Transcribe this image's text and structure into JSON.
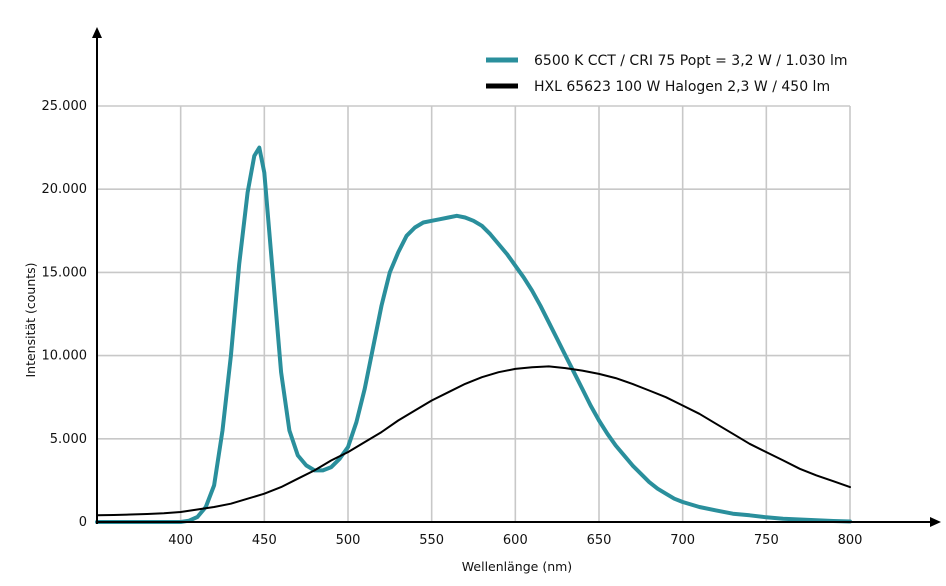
{
  "chart_data": {
    "type": "line",
    "title": "",
    "xlabel": "Wellenlänge (nm)",
    "ylabel": "Intensität (counts)",
    "xlim": [
      350,
      800
    ],
    "ylim": [
      0,
      25000
    ],
    "x_ticks": [
      400,
      450,
      500,
      550,
      600,
      650,
      700,
      750,
      800
    ],
    "x_tick_labels": [
      "400",
      "450",
      "500",
      "550",
      "600",
      "650",
      "700",
      "750",
      "800"
    ],
    "y_ticks": [
      0,
      5000,
      10000,
      15000,
      20000,
      25000
    ],
    "y_tick_labels": [
      "0",
      "5.000",
      "10.000",
      "15.000",
      "20.000",
      "25.000"
    ],
    "grid": true,
    "legend_position": "top-right",
    "series": [
      {
        "name": "6500 K CCT / CRI 75 Popt = 3,2 W / 1.030 lm",
        "color": "#2a8f9c",
        "x": [
          350,
          400,
          405,
          410,
          415,
          420,
          425,
          430,
          435,
          440,
          444,
          447,
          450,
          455,
          460,
          465,
          470,
          475,
          480,
          485,
          490,
          495,
          500,
          505,
          510,
          515,
          520,
          525,
          530,
          535,
          540,
          545,
          550,
          555,
          560,
          565,
          570,
          575,
          580,
          585,
          590,
          595,
          600,
          605,
          610,
          615,
          620,
          625,
          630,
          635,
          640,
          645,
          650,
          655,
          660,
          665,
          670,
          675,
          680,
          685,
          690,
          695,
          700,
          710,
          720,
          730,
          740,
          750,
          760,
          770,
          780,
          790,
          800
        ],
        "values": [
          0,
          0,
          80,
          300,
          900,
          2200,
          5500,
          10000,
          15500,
          19800,
          22000,
          22500,
          21000,
          15000,
          9000,
          5500,
          4000,
          3400,
          3100,
          3100,
          3300,
          3800,
          4500,
          6000,
          8000,
          10500,
          13000,
          15000,
          16200,
          17200,
          17700,
          18000,
          18100,
          18200,
          18300,
          18400,
          18300,
          18100,
          17800,
          17300,
          16700,
          16100,
          15400,
          14700,
          13900,
          13000,
          12000,
          11000,
          10000,
          9000,
          8000,
          7000,
          6100,
          5300,
          4600,
          4000,
          3400,
          2900,
          2400,
          2000,
          1700,
          1400,
          1200,
          900,
          700,
          500,
          400,
          280,
          200,
          150,
          100,
          60,
          30
        ]
      },
      {
        "name": "HXL 65623 100 W Halogen 2,3 W / 450 lm",
        "color": "#000000",
        "x": [
          350,
          360,
          370,
          380,
          390,
          400,
          410,
          420,
          430,
          440,
          450,
          460,
          470,
          480,
          490,
          500,
          510,
          520,
          530,
          540,
          550,
          560,
          570,
          580,
          590,
          600,
          610,
          620,
          630,
          640,
          650,
          660,
          670,
          680,
          690,
          700,
          710,
          720,
          730,
          740,
          750,
          760,
          770,
          780,
          790,
          800
        ],
        "values": [
          400,
          420,
          450,
          480,
          520,
          600,
          750,
          900,
          1100,
          1400,
          1700,
          2100,
          2600,
          3100,
          3700,
          4200,
          4800,
          5400,
          6100,
          6700,
          7300,
          7800,
          8300,
          8700,
          9000,
          9200,
          9300,
          9350,
          9250,
          9100,
          8900,
          8650,
          8300,
          7900,
          7500,
          7000,
          6500,
          5900,
          5300,
          4700,
          4200,
          3700,
          3200,
          2800,
          2450,
          2100
        ]
      }
    ]
  }
}
